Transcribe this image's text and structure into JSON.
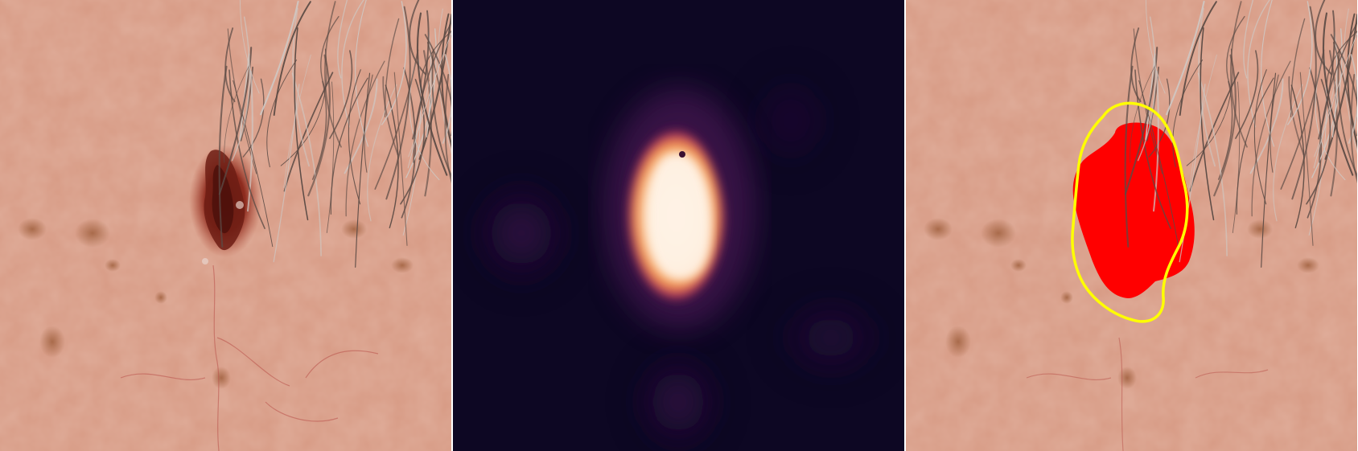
{
  "figure": {
    "panels": [
      {
        "role": "input-dermoscopy-image"
      },
      {
        "role": "heatmap"
      },
      {
        "role": "overlay"
      }
    ]
  },
  "colors": {
    "skin_base": "#d79a84",
    "skin_light": "#e6b19d",
    "skin_shadow": "#c98a74",
    "hair": "#5a4a44",
    "hair_gray": "#cfc7c2",
    "lesion_dark": "#6d1d14",
    "lesion_mid": "#a23a2b",
    "heatmap_bg": "#0d0723",
    "heatmap_mid": "#7a1e6b",
    "heatmap_hot": "#f59a52",
    "heatmap_peak": "#fff4e6",
    "prediction_fill": "#ff0000",
    "ground_truth_contour": "#ffff00"
  }
}
